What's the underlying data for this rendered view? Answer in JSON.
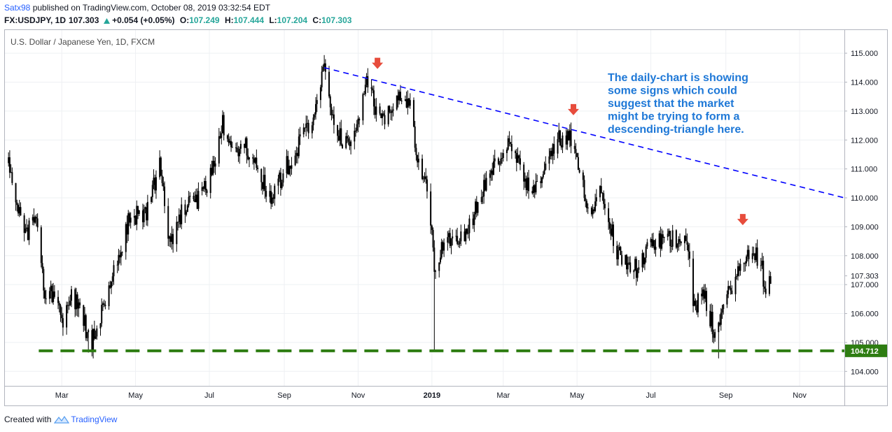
{
  "header": {
    "author": "Satx98",
    "published_text": " published on TradingView.com, October 08, 2019 03:32:54 EDT",
    "symbol": "FX:USDJPY, 1D",
    "last": "107.303",
    "change": "+0.054 (+0.05%)",
    "o_label": "O:",
    "o_value": "107.249",
    "h_label": "H:",
    "h_value": "107.444",
    "l_label": "L:",
    "l_value": "107.204",
    "c_label": "C:",
    "c_value": "107.303",
    "up_arrow_icon": "triangle-up-icon"
  },
  "footer": {
    "created_with": "Created with",
    "brand": "TradingView",
    "logo_icon": "tradingview-logo-icon"
  },
  "colors": {
    "candle": "#000000",
    "trendline": "#0000ff",
    "support": "#2e7d12",
    "arrow": "#e74c3c",
    "annotation": "#1e78d7",
    "up": "#26a69a"
  },
  "chart_data": {
    "type": "candlestick",
    "title": "U.S. Dollar / Japanese Yen, 1D, FXCM",
    "y_axis": {
      "range": [
        103.5,
        115.8
      ],
      "ticks": [
        "104.000",
        "105.000",
        "106.000",
        "107.000",
        "108.000",
        "109.000",
        "110.000",
        "111.000",
        "112.000",
        "113.000",
        "114.000",
        "115.000"
      ]
    },
    "x_axis": {
      "range": [
        "2018-01-13",
        "2019-12-08"
      ],
      "ticks": [
        {
          "label": "Mar",
          "date": "2018-03-01",
          "bold": false
        },
        {
          "label": "May",
          "date": "2018-05-01",
          "bold": false
        },
        {
          "label": "Jul",
          "date": "2018-07-01",
          "bold": false
        },
        {
          "label": "Sep",
          "date": "2018-09-01",
          "bold": false
        },
        {
          "label": "Nov",
          "date": "2018-11-01",
          "bold": false
        },
        {
          "label": "2019",
          "date": "2019-01-01",
          "bold": true
        },
        {
          "label": "Mar",
          "date": "2019-03-01",
          "bold": false
        },
        {
          "label": "May",
          "date": "2019-05-01",
          "bold": false
        },
        {
          "label": "Jul",
          "date": "2019-07-01",
          "bold": false
        },
        {
          "label": "Sep",
          "date": "2019-09-01",
          "bold": false
        },
        {
          "label": "Nov",
          "date": "2019-11-01",
          "bold": false
        }
      ]
    },
    "price_series": [
      {
        "date": "2018-01-16",
        "close": 111.2
      },
      {
        "date": "2018-01-29",
        "close": 108.7
      },
      {
        "date": "2018-02-08",
        "close": 109.3
      },
      {
        "date": "2018-02-16",
        "close": 106.3
      },
      {
        "date": "2018-02-23",
        "close": 106.9
      },
      {
        "date": "2018-03-02",
        "close": 105.8
      },
      {
        "date": "2018-03-09",
        "close": 106.8
      },
      {
        "date": "2018-03-16",
        "close": 106.0
      },
      {
        "date": "2018-03-26",
        "close": 105.0
      },
      {
        "date": "2018-04-02",
        "close": 105.9
      },
      {
        "date": "2018-04-13",
        "close": 107.4
      },
      {
        "date": "2018-04-26",
        "close": 109.3
      },
      {
        "date": "2018-05-10",
        "close": 109.5
      },
      {
        "date": "2018-05-21",
        "close": 111.1
      },
      {
        "date": "2018-05-29",
        "close": 108.4
      },
      {
        "date": "2018-06-08",
        "close": 109.5
      },
      {
        "date": "2018-06-22",
        "close": 110.0
      },
      {
        "date": "2018-07-03",
        "close": 110.8
      },
      {
        "date": "2018-07-12",
        "close": 112.6
      },
      {
        "date": "2018-07-20",
        "close": 111.4
      },
      {
        "date": "2018-07-31",
        "close": 111.8
      },
      {
        "date": "2018-08-10",
        "close": 110.9
      },
      {
        "date": "2018-08-21",
        "close": 110.0
      },
      {
        "date": "2018-09-03",
        "close": 111.1
      },
      {
        "date": "2018-09-11",
        "close": 111.6
      },
      {
        "date": "2018-09-24",
        "close": 112.8
      },
      {
        "date": "2018-10-04",
        "close": 114.5
      },
      {
        "date": "2018-10-12",
        "close": 112.3
      },
      {
        "date": "2018-10-26",
        "close": 111.8
      },
      {
        "date": "2018-11-08",
        "close": 114.0
      },
      {
        "date": "2018-11-20",
        "close": 112.6
      },
      {
        "date": "2018-12-03",
        "close": 113.6
      },
      {
        "date": "2018-12-13",
        "close": 113.4
      },
      {
        "date": "2018-12-20",
        "close": 111.2
      },
      {
        "date": "2018-12-28",
        "close": 110.3
      },
      {
        "date": "2019-01-03",
        "close": 107.7
      },
      {
        "date": "2019-01-15",
        "close": 108.6
      },
      {
        "date": "2019-01-31",
        "close": 108.9
      },
      {
        "date": "2019-02-14",
        "close": 110.5
      },
      {
        "date": "2019-03-05",
        "close": 111.9
      },
      {
        "date": "2019-03-25",
        "close": 110.0
      },
      {
        "date": "2019-04-15",
        "close": 112.0
      },
      {
        "date": "2019-04-25",
        "close": 112.0
      },
      {
        "date": "2019-05-13",
        "close": 109.4
      },
      {
        "date": "2019-05-21",
        "close": 110.5
      },
      {
        "date": "2019-06-03",
        "close": 108.1
      },
      {
        "date": "2019-06-21",
        "close": 107.5
      },
      {
        "date": "2019-07-01",
        "close": 108.4
      },
      {
        "date": "2019-07-10",
        "close": 108.5
      },
      {
        "date": "2019-07-31",
        "close": 108.7
      },
      {
        "date": "2019-08-05",
        "close": 106.2
      },
      {
        "date": "2019-08-14",
        "close": 106.6
      },
      {
        "date": "2019-08-23",
        "close": 105.3
      },
      {
        "date": "2019-08-30",
        "close": 106.2
      },
      {
        "date": "2019-09-06",
        "close": 107.0
      },
      {
        "date": "2019-09-19",
        "close": 108.0
      },
      {
        "date": "2019-09-30",
        "close": 108.0
      },
      {
        "date": "2019-10-03",
        "close": 106.8
      },
      {
        "date": "2019-10-08",
        "close": 107.3
      }
    ],
    "trendline": {
      "from": {
        "date": "2018-10-04",
        "price": 114.5
      },
      "to": {
        "date": "2019-12-08",
        "price": 110.0
      }
    },
    "support_level": {
      "price": 104.712,
      "from": "2018-02-10",
      "label": "104.712"
    },
    "current_price": {
      "price": 107.303,
      "label": "107.303"
    },
    "marker_arrows": [
      {
        "date": "2018-11-17",
        "price": 114.6
      },
      {
        "date": "2019-04-28",
        "price": 113.0
      },
      {
        "date": "2019-09-15",
        "price": 109.2
      }
    ],
    "annotation": {
      "lines": [
        "The daily-chart is showing",
        "some signs which could",
        "suggest that the market",
        "might be trying to form a",
        "descending-triangle here."
      ]
    }
  }
}
